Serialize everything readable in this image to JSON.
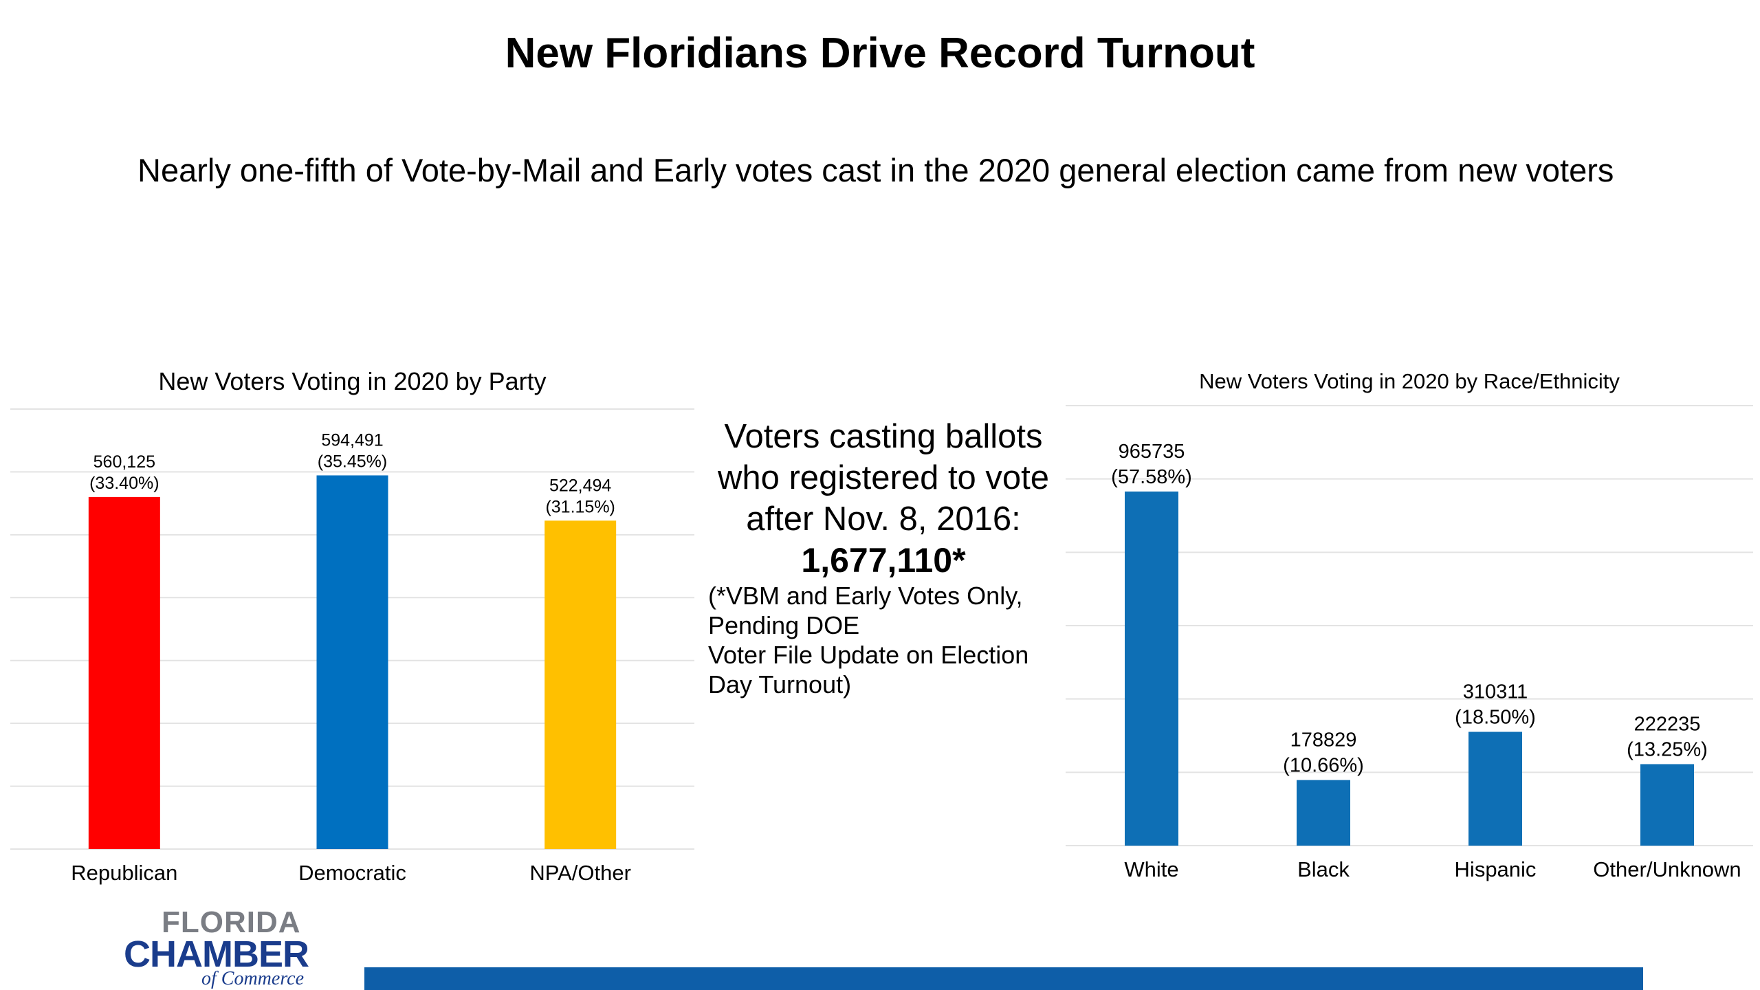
{
  "slide": {
    "title": "New Floridians Drive Record Turnout",
    "subtitle": "Nearly one-fifth of Vote-by-Mail and Early votes cast in the 2020 general election came from new voters"
  },
  "center_text": {
    "main": "Voters casting ballots who registered to vote after Nov. 8, 2016:",
    "number": "1,677,110*",
    "note_lines": [
      "(*VBM and Early Votes Only,",
      "Pending DOE",
      "Voter File Update on Election",
      "Day Turnout)"
    ]
  },
  "logo": {
    "line1": "FLORIDA",
    "line2": "CHAMBER",
    "line3": "of Commerce"
  },
  "chart_data": [
    {
      "type": "bar",
      "title": "New Voters Voting in 2020 by Party",
      "categories": [
        "Republican",
        "Democratic",
        "NPA/Other"
      ],
      "values": [
        560125,
        594491,
        522494
      ],
      "value_labels": [
        "560,125",
        "594,491",
        "522,494"
      ],
      "percent_labels": [
        "(33.40%)",
        "(35.45%)",
        "(31.15%)"
      ],
      "colors": [
        "#ff0000",
        "#0070c0",
        "#ffc000"
      ],
      "ylim": [
        0,
        700000
      ],
      "grid": true,
      "legend": "none"
    },
    {
      "type": "bar",
      "title": "New Voters Voting in 2020 by Race/Ethnicity",
      "categories": [
        "White",
        "Black",
        "Hispanic",
        "Other/Unknown"
      ],
      "values": [
        965735,
        178829,
        310311,
        222235
      ],
      "value_labels": [
        "965735",
        "178829",
        "310311",
        "222235"
      ],
      "percent_labels": [
        "(57.58%)",
        "(10.66%)",
        "(18.50%)",
        "(13.25%)"
      ],
      "colors": [
        "#0e6fb5",
        "#0e6fb5",
        "#0e6fb5",
        "#0e6fb5"
      ],
      "ylim": [
        0,
        1200000
      ],
      "grid": true,
      "legend": "none"
    }
  ]
}
